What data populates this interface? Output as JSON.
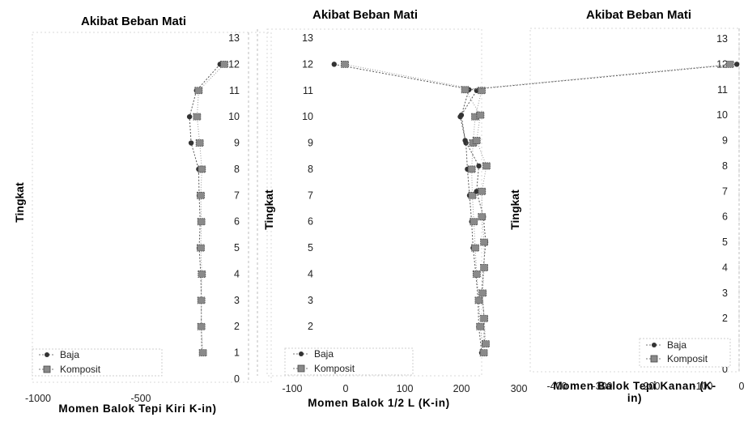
{
  "chart_data": [
    {
      "type": "line",
      "title": "Akibat Beban Mati",
      "xlabel": "Momen Balok Tepi Kiri K-in)",
      "ylabel": "Tingkat",
      "xlim": [
        -1000,
        0
      ],
      "ylim": [
        0,
        13
      ],
      "x_ticks": [
        "-1000",
        "-500"
      ],
      "y_ticks": [
        "0",
        "1",
        "2",
        "3",
        "4",
        "5",
        "6",
        "7",
        "8",
        "9",
        "10",
        "11",
        "12",
        "13"
      ],
      "legend": {
        "position": "bottom-left",
        "entries": [
          "Baja",
          "Komposit"
        ]
      },
      "series": [
        {
          "name": "Baja",
          "marker": "dot",
          "values": [
            {
              "y": 1,
              "x": -240
            },
            {
              "y": 2,
              "x": -245
            },
            {
              "y": 3,
              "x": -245
            },
            {
              "y": 4,
              "x": -250
            },
            {
              "y": 5,
              "x": -265
            },
            {
              "y": 6,
              "x": -255
            },
            {
              "y": 7,
              "x": -265
            },
            {
              "y": 8,
              "x": -270
            },
            {
              "y": 9,
              "x": -340
            },
            {
              "y": 10,
              "x": -355
            },
            {
              "y": 11,
              "x": -290
            },
            {
              "y": 12,
              "x": -70
            }
          ]
        },
        {
          "name": "Komposit",
          "marker": "hatch",
          "values": [
            {
              "y": 1,
              "x": -230
            },
            {
              "y": 2,
              "x": -245
            },
            {
              "y": 3,
              "x": -245
            },
            {
              "y": 4,
              "x": -240
            },
            {
              "y": 5,
              "x": -250
            },
            {
              "y": 6,
              "x": -245
            },
            {
              "y": 7,
              "x": -250
            },
            {
              "y": 8,
              "x": -240
            },
            {
              "y": 9,
              "x": -260
            },
            {
              "y": 10,
              "x": -285
            },
            {
              "y": 11,
              "x": -270
            },
            {
              "y": 12,
              "x": -30
            }
          ]
        }
      ]
    },
    {
      "type": "line",
      "title": "Akibat Beban Mati",
      "xlabel": "Momen Balok 1/2 L (K-in)",
      "ylabel": "Tingkat",
      "xlim": [
        -100,
        300
      ],
      "ylim": [
        0,
        13
      ],
      "x_ticks": [
        "-100",
        "0",
        "100",
        "200",
        "300"
      ],
      "y_ticks": [
        "1",
        "2",
        "3",
        "4",
        "5",
        "6",
        "7",
        "8",
        "9",
        "10",
        "11",
        "12",
        "13"
      ],
      "legend": {
        "position": "bottom-left",
        "entries": [
          "Baja",
          "Komposit"
        ]
      },
      "series": [
        {
          "name": "Baja",
          "marker": "dot",
          "values": [
            {
              "y": 1,
              "x": 192
            },
            {
              "y": 2,
              "x": 188
            },
            {
              "y": 3,
              "x": 187
            },
            {
              "y": 4,
              "x": 184
            },
            {
              "y": 5,
              "x": 180
            },
            {
              "y": 6,
              "x": 178
            },
            {
              "y": 7,
              "x": 175
            },
            {
              "y": 8,
              "x": 172
            },
            {
              "y": 9,
              "x": 170
            },
            {
              "y": 10,
              "x": 162
            },
            {
              "y": 11,
              "x": 185
            },
            {
              "y": 12,
              "x": -15
            }
          ]
        },
        {
          "name": "Komposit",
          "marker": "hatch",
          "values": [
            {
              "y": 1,
              "x": 195
            },
            {
              "y": 2,
              "x": 190
            },
            {
              "y": 3,
              "x": 188
            },
            {
              "y": 4,
              "x": 185
            },
            {
              "y": 5,
              "x": 183
            },
            {
              "y": 6,
              "x": 181
            },
            {
              "y": 7,
              "x": 179
            },
            {
              "y": 8,
              "x": 178
            },
            {
              "y": 9,
              "x": 180
            },
            {
              "y": 10,
              "x": 183
            },
            {
              "y": 11,
              "x": 192
            },
            {
              "y": 12,
              "x": 0
            }
          ]
        }
      ]
    },
    {
      "type": "line",
      "title": "Akibat Beban Mati",
      "xlabel": "Momen Balok Tepi Kanan (K-in)",
      "ylabel": "Tingkat",
      "xlim": [
        -400,
        0
      ],
      "ylim": [
        0,
        13
      ],
      "x_ticks": [
        "-400",
        "-300",
        "-200",
        "-100",
        "0"
      ],
      "y_ticks": [
        "0",
        "1",
        "2",
        "3",
        "4",
        "5",
        "6",
        "7",
        "8",
        "9",
        "10",
        "11",
        "12",
        "13"
      ],
      "legend": {
        "position": "bottom-right",
        "entries": [
          "Baja",
          "Komposit"
        ]
      },
      "series": [
        {
          "name": "Baja",
          "marker": "dot",
          "values": [
            {
              "y": 1,
              "x": -335
            },
            {
              "y": 2,
              "x": -335
            },
            {
              "y": 3,
              "x": -338
            },
            {
              "y": 4,
              "x": -336
            },
            {
              "y": 5,
              "x": -333
            },
            {
              "y": 6,
              "x": -336
            },
            {
              "y": 7,
              "x": -345
            },
            {
              "y": 8,
              "x": -342
            },
            {
              "y": 9,
              "x": -360
            },
            {
              "y": 10,
              "x": -365
            },
            {
              "y": 11,
              "x": -355
            },
            {
              "y": 12,
              "x": -3
            }
          ]
        },
        {
          "name": "Komposit",
          "marker": "hatch",
          "values": [
            {
              "y": 1,
              "x": -333
            },
            {
              "y": 2,
              "x": -335
            },
            {
              "y": 3,
              "x": -337
            },
            {
              "y": 4,
              "x": -335
            },
            {
              "y": 5,
              "x": -335
            },
            {
              "y": 6,
              "x": -338
            },
            {
              "y": 7,
              "x": -338
            },
            {
              "y": 8,
              "x": -332
            },
            {
              "y": 9,
              "x": -345
            },
            {
              "y": 10,
              "x": -340
            },
            {
              "y": 11,
              "x": -360
            },
            {
              "y": 12,
              "x": -12
            }
          ]
        }
      ]
    }
  ]
}
